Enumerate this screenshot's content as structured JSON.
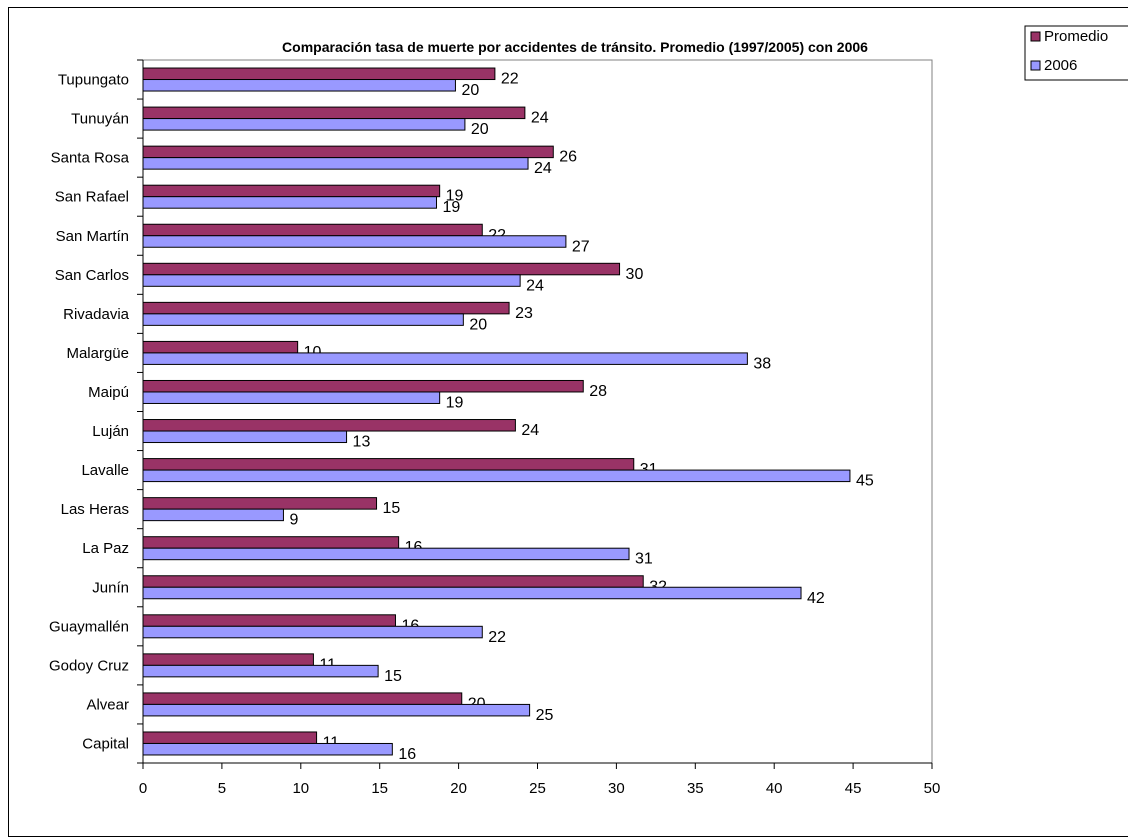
{
  "chart_data": {
    "type": "bar",
    "orientation": "horizontal",
    "title": "Comparación tasa de muerte por accidentes de tránsito. Promedio (1997/2005) con 2006",
    "xlabel": "",
    "ylabel": "",
    "xlim": [
      0,
      50
    ],
    "x_ticks": [
      0,
      5,
      10,
      15,
      20,
      25,
      30,
      35,
      40,
      45,
      50
    ],
    "grid": false,
    "legend_position": "top-right",
    "categories": [
      "Tupungato",
      "Tunuyán",
      "Santa Rosa",
      "San Rafael",
      "San Martín",
      "San Carlos",
      "Rivadavia",
      "Malargüe",
      "Maipú",
      "Luján",
      "Lavalle",
      "Las Heras",
      "La Paz",
      "Junín",
      "Guaymallén",
      "Godoy Cruz",
      "Alvear",
      "Capital"
    ],
    "series": [
      {
        "name": "Promedio",
        "color": "#993366",
        "values": [
          22.3,
          24.2,
          26.0,
          18.8,
          21.5,
          30.2,
          23.2,
          9.8,
          27.9,
          23.6,
          31.1,
          14.8,
          16.2,
          31.7,
          16.0,
          10.8,
          20.2,
          11.0
        ],
        "labels": [
          "22",
          "24",
          "26",
          "19",
          "22",
          "30",
          "23",
          "10",
          "28",
          "24",
          "31",
          "15",
          "16",
          "32",
          "16",
          "11",
          "20",
          "11"
        ]
      },
      {
        "name": "2006",
        "color": "#9999FF",
        "values": [
          19.8,
          20.4,
          24.4,
          18.6,
          26.8,
          23.9,
          20.3,
          38.3,
          18.8,
          12.9,
          44.8,
          8.9,
          30.8,
          41.7,
          21.5,
          14.9,
          24.5,
          15.8
        ],
        "labels": [
          "20",
          "20",
          "24",
          "19",
          "27",
          "24",
          "20",
          "38",
          "19",
          "13",
          "45",
          "9",
          "31",
          "42",
          "22",
          "15",
          "25",
          "16"
        ]
      }
    ]
  }
}
